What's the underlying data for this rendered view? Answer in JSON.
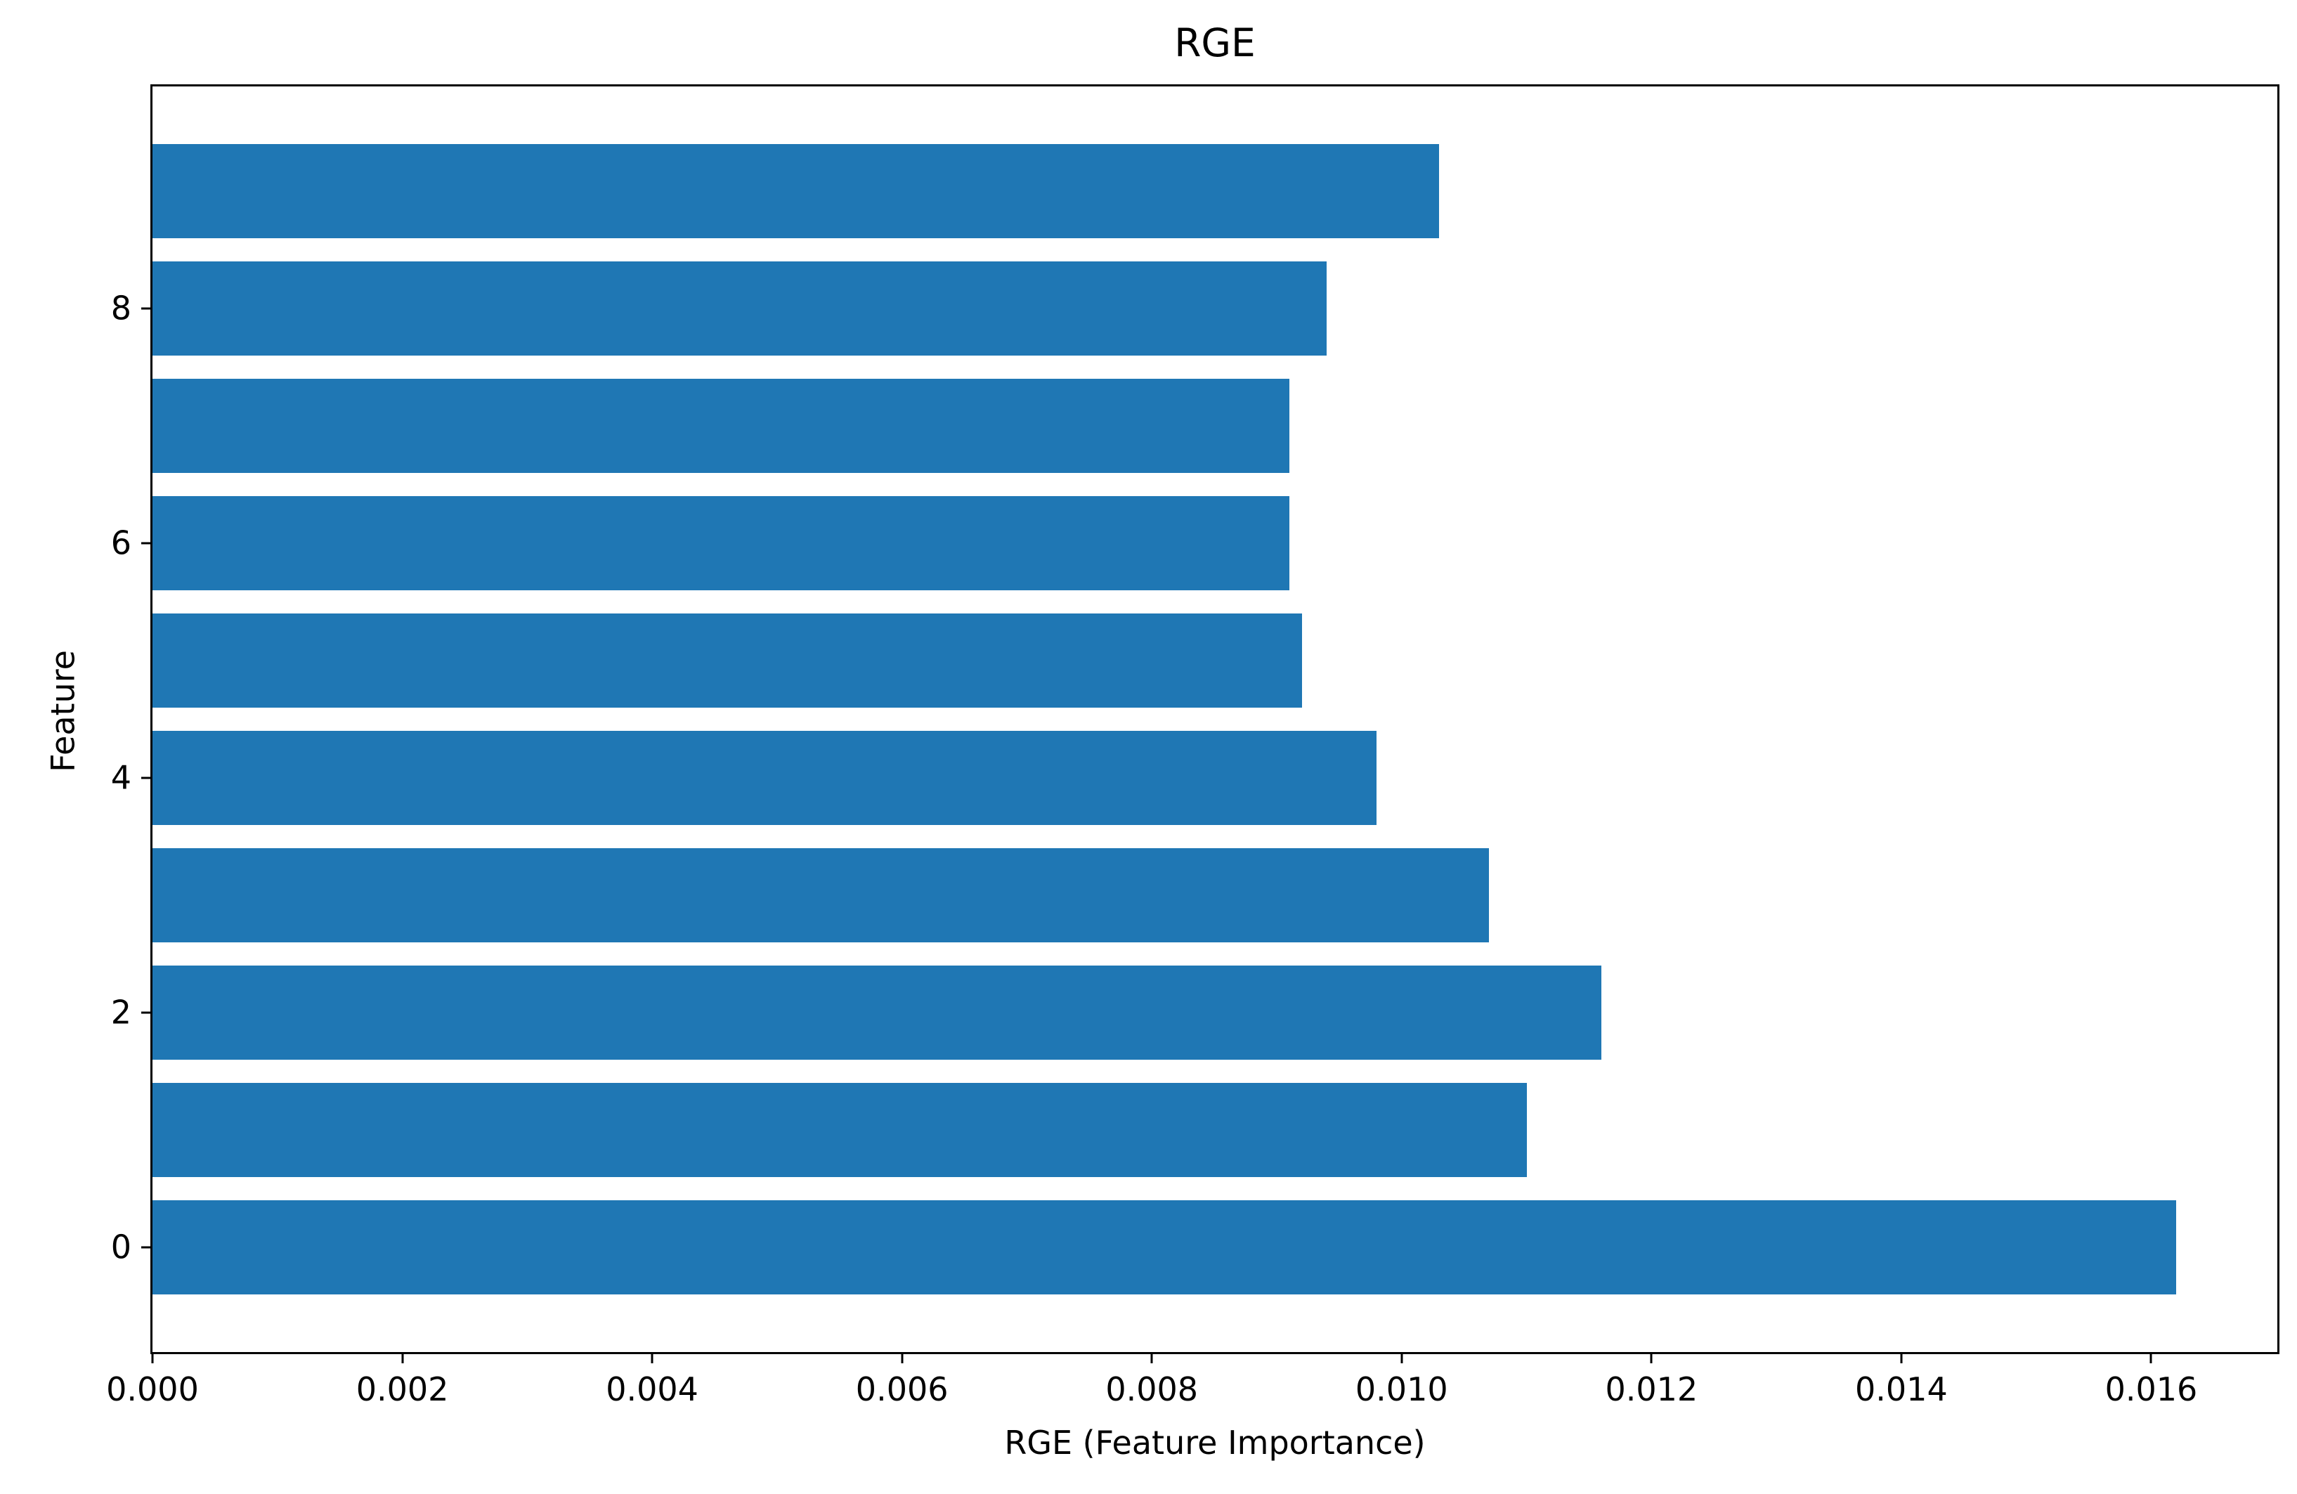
{
  "figure": {
    "background": "#ffffff"
  },
  "chart_data": {
    "type": "bar",
    "orientation": "horizontal",
    "title": "RGE",
    "xlabel": "RGE (Feature Importance)",
    "ylabel": "Feature",
    "categories": [
      "0",
      "1",
      "2",
      "3",
      "4",
      "5",
      "6",
      "7",
      "8",
      "9"
    ],
    "values": [
      0.0162,
      0.011,
      0.0116,
      0.0107,
      0.0098,
      0.0092,
      0.0091,
      0.0091,
      0.0094,
      0.0103
    ],
    "bar_color": "#1f77b4",
    "bar_height_fraction": 0.8,
    "xlim": [
      0,
      0.01701
    ],
    "ylim": [
      -0.89,
      9.89
    ],
    "x_ticks": [
      0.0,
      0.002,
      0.004,
      0.006,
      0.008,
      0.01,
      0.012,
      0.014,
      0.016
    ],
    "x_tick_labels": [
      "0.000",
      "0.002",
      "0.004",
      "0.006",
      "0.008",
      "0.010",
      "0.012",
      "0.014",
      "0.016"
    ],
    "y_ticks": [
      0,
      2,
      4,
      6,
      8
    ],
    "y_tick_labels": [
      "0",
      "2",
      "4",
      "6",
      "8"
    ],
    "grid": false,
    "legend_position": null,
    "spine_color": "#000000",
    "text_color": "#000000"
  }
}
